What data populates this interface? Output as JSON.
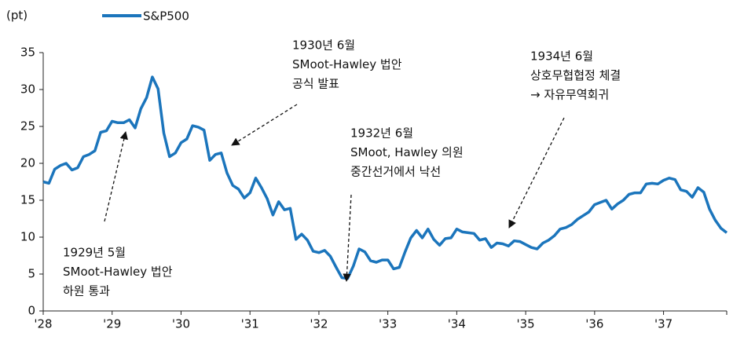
{
  "chart_data": {
    "type": "line",
    "y_label": "(pt)",
    "series": [
      {
        "name": "S&P500",
        "color": "#1b75bc",
        "values": [
          17.5,
          17.3,
          19.2,
          19.7,
          20.0,
          19.1,
          19.4,
          20.9,
          21.2,
          21.7,
          24.2,
          24.4,
          25.7,
          25.5,
          25.5,
          25.9,
          24.8,
          27.4,
          28.9,
          31.7,
          30.1,
          24.1,
          20.9,
          21.4,
          22.8,
          23.3,
          25.1,
          24.9,
          24.5,
          20.4,
          21.2,
          21.4,
          18.7,
          17.0,
          16.5,
          15.3,
          16.0,
          18.0,
          16.7,
          15.2,
          13.0,
          14.8,
          13.7,
          13.9,
          9.7,
          10.4,
          9.6,
          8.1,
          7.9,
          8.2,
          7.4,
          5.9,
          4.5,
          4.4,
          6.1,
          8.4,
          8.0,
          6.8,
          6.6,
          6.9,
          6.9,
          5.7,
          5.9,
          8.0,
          9.9,
          10.9,
          9.9,
          11.1,
          9.7,
          8.9,
          9.8,
          9.9,
          11.1,
          10.7,
          10.6,
          10.5,
          9.6,
          9.8,
          8.6,
          9.2,
          9.1,
          8.8,
          9.5,
          9.4,
          9.0,
          8.6,
          8.4,
          9.2,
          9.6,
          10.2,
          11.1,
          11.3,
          11.7,
          12.4,
          12.9,
          13.4,
          14.4,
          14.7,
          15.0,
          13.8,
          14.5,
          15.0,
          15.8,
          16.0,
          16.0,
          17.2,
          17.3,
          17.2,
          17.7,
          18.0,
          17.8,
          16.4,
          16.2,
          15.4,
          16.7,
          16.1,
          13.8,
          12.3,
          11.2,
          10.6
        ]
      }
    ],
    "xlim": [
      0,
      119
    ],
    "xticks": [
      {
        "value": 0,
        "label": "'28"
      },
      {
        "value": 12,
        "label": "'29"
      },
      {
        "value": 24,
        "label": "'30"
      },
      {
        "value": 36,
        "label": "'31"
      },
      {
        "value": 48,
        "label": "'32"
      },
      {
        "value": 60,
        "label": "'33"
      },
      {
        "value": 72,
        "label": "'34"
      },
      {
        "value": 84,
        "label": "'35"
      },
      {
        "value": 96,
        "label": "'36"
      },
      {
        "value": 108,
        "label": "'37"
      },
      {
        "value": 120,
        "label": ""
      }
    ],
    "ylim": [
      0,
      35
    ],
    "yticks": [
      0,
      5,
      10,
      15,
      20,
      25,
      30,
      35
    ],
    "grid": false,
    "legend": "top",
    "annotations": [
      [
        "1929년 5월",
        "SMoot-Hawley 법안",
        "하원 통과"
      ],
      [
        "1930년 6월",
        "SMoot-Hawley 법안",
        "공식 발표"
      ],
      [
        "1932년 6월",
        "SMoot, Hawley 의원",
        "중간선거에서 낙선"
      ],
      [
        "1934년 6월",
        "상호무협협정 체결",
        "→ 자유무역회귀"
      ]
    ]
  }
}
